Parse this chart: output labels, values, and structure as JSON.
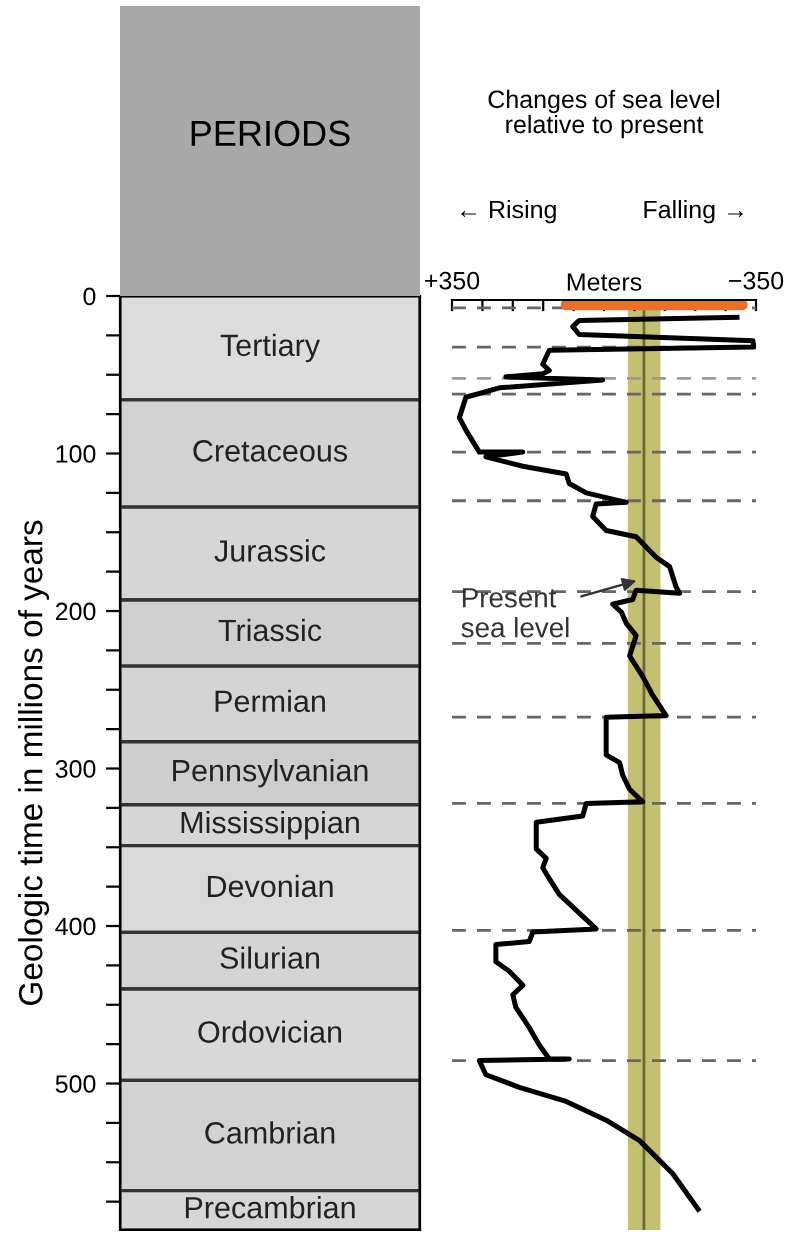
{
  "chart_data": [
    {
      "type": "bar",
      "stacked": true,
      "title": "PERIODS",
      "ylabel": "Geologic time in millions of years",
      "categories": [
        null
      ],
      "series": [
        {
          "name": "Tertiary",
          "color": "#dcdcdc",
          "values": [
            66
          ]
        },
        {
          "name": "Cretaceous",
          "color": "#d2d2d2",
          "values": [
            68
          ]
        },
        {
          "name": "Jurassic",
          "color": "#d6d6d6",
          "values": [
            59
          ]
        },
        {
          "name": "Triassic",
          "color": "#d0d0d0",
          "values": [
            42
          ]
        },
        {
          "name": "Permian",
          "color": "#d4d4d4",
          "values": [
            48
          ]
        },
        {
          "name": "Pennsylvanian",
          "color": "#cecece",
          "values": [
            40
          ]
        },
        {
          "name": "Mississippian",
          "color": "#d6d6d6",
          "values": [
            26
          ]
        },
        {
          "name": "Devonian",
          "color": "#dadada",
          "values": [
            55
          ]
        },
        {
          "name": "Silurian",
          "color": "#d4d4d4",
          "values": [
            36
          ]
        },
        {
          "name": "Ordovician",
          "color": "#d8d8d8",
          "values": [
            58
          ]
        },
        {
          "name": "Cambrian",
          "color": "#d2d2d2",
          "values": [
            70
          ]
        },
        {
          "name": "Precambrian",
          "color": "#d6d6d6",
          "values": [
            25
          ]
        }
      ],
      "ylim": [
        593,
        0
      ],
      "yticks": [
        0,
        {
          "value": 25,
          "label": null
        },
        {
          "value": 50,
          "label": null
        },
        {
          "value": 75,
          "label": null
        },
        100,
        {
          "value": 125,
          "label": null
        },
        {
          "value": 150,
          "label": null
        },
        {
          "value": 175,
          "label": null
        },
        200,
        {
          "value": 225,
          "label": null
        },
        {
          "value": 250,
          "label": null
        },
        {
          "value": 275,
          "label": null
        },
        300,
        {
          "value": 325,
          "label": null
        },
        {
          "value": 350,
          "label": null
        },
        {
          "value": 375,
          "label": null
        },
        400,
        {
          "value": 425,
          "label": null
        },
        {
          "value": 450,
          "label": null
        },
        {
          "value": 475,
          "label": null
        },
        500,
        {
          "value": 525,
          "label": null
        },
        {
          "value": 550,
          "label": null
        },
        {
          "value": 575,
          "label": null
        }
      ],
      "tick_labels": "y",
      "legend": false,
      "grid": false
    },
    {
      "type": "line",
      "title": "Changes of sea level\nrelative to present",
      "xlabel": "Meters",
      "annotations": [
        "← Rising",
        "Falling →"
      ],
      "series": [
        {
          "color": "#000000",
          "x": [
            -312,
            57,
            72,
            57,
            -343,
            -345,
            126,
            141,
            126,
            141,
            226,
            3,
            241,
            318,
            333,
            318,
            287,
            187,
            272,
            187,
            87,
            80,
            41,
            -51,
            18,
            26,
            -5,
            -74,
            -120,
            -151,
            -166,
            -174,
            -74,
            -66,
            -20,
            -40,
            -51,
            -74,
            -59,
            -89,
            -112,
            -143,
            -5,
            -5,
            -36,
            -43,
            -59,
            -89,
            41,
            49,
            156,
            156,
            133,
            141,
            126,
            103,
            18,
            164,
            172,
            249,
            249,
            218,
            187,
            210,
            203,
            172,
            149,
            126,
            80,
            287,
            272,
            195,
            87,
            -5,
            -82,
            -158,
            -220
          ],
          "values": [
            11,
            13,
            17,
            22,
            26,
            30,
            32,
            41,
            45,
            47,
            49,
            51,
            56,
            62,
            75,
            83,
            97,
            97,
            100,
            106,
            111,
            117,
            123,
            129,
            130,
            138,
            147,
            151,
            164,
            170,
            183,
            187,
            185,
            191,
            194,
            199,
            206,
            214,
            227,
            240,
            252,
            265,
            266,
            290,
            295,
            303,
            312,
            320,
            321,
            329,
            333,
            350,
            356,
            362,
            369,
            379,
            401,
            403,
            409,
            411,
            422,
            428,
            437,
            443,
            451,
            464,
            475,
            484,
            484,
            485,
            494,
            502,
            511,
            523,
            536,
            557,
            581
          ]
        },
        {
          "color": "#e8702a",
          "x": [
            87,
            -318
          ],
          "values": [
            3,
            3
          ]
        }
      ],
      "xlim": [
        350,
        -350
      ],
      "ylim": [
        593,
        0
      ],
      "xticks": [
        {
          "value": 350,
          "label": "+350"
        },
        {
          "value": 280,
          "label": null
        },
        {
          "value": 210,
          "label": null
        },
        {
          "value": 140,
          "label": null
        },
        {
          "value": 70,
          "label": null
        },
        {
          "value": 0,
          "label": null
        },
        {
          "value": -70,
          "label": null
        },
        {
          "value": -140,
          "label": null
        },
        {
          "value": -210,
          "label": null
        },
        {
          "value": -280,
          "label": null
        },
        {
          "value": -350,
          "label": "−350"
        }
      ],
      "tick_labels": "x",
      "marker": "none",
      "line_style": "solid",
      "legend": false,
      "grid": false,
      "ref_lines": [
        {
          "axis": "x",
          "value": -92,
          "label": "Present\nsea level",
          "color": "#6b6b30",
          "line_style": "solid"
        },
        {
          "axis": "y",
          "value": 5,
          "color": "#666666",
          "line_style": "dashed"
        },
        {
          "axis": "y",
          "value": 30,
          "color": "#666666",
          "line_style": "dashed"
        },
        {
          "axis": "y",
          "value": 50,
          "color": "#9a9a9a",
          "line_style": "dashed"
        },
        {
          "axis": "y",
          "value": 60,
          "color": "#666666",
          "line_style": "dashed"
        },
        {
          "axis": "y",
          "value": 97,
          "color": "#666666",
          "line_style": "dashed"
        },
        {
          "axis": "y",
          "value": 128,
          "color": "#666666",
          "line_style": "dashed"
        },
        {
          "axis": "y",
          "value": 186,
          "color": "#666666",
          "line_style": "dashed"
        },
        {
          "axis": "y",
          "value": 219,
          "color": "#666666",
          "line_style": "dashed"
        },
        {
          "axis": "y",
          "value": 266,
          "color": "#666666",
          "line_style": "dashed"
        },
        {
          "axis": "y",
          "value": 321,
          "color": "#666666",
          "line_style": "dashed"
        },
        {
          "axis": "y",
          "value": 402,
          "color": "#666666",
          "line_style": "dashed"
        },
        {
          "axis": "y",
          "value": 485,
          "color": "#666666",
          "line_style": "dashed"
        }
      ],
      "bands": [
        {
          "axis": "x",
          "from": -55,
          "to": -130,
          "color": "#b8b45a"
        }
      ]
    }
  ]
}
